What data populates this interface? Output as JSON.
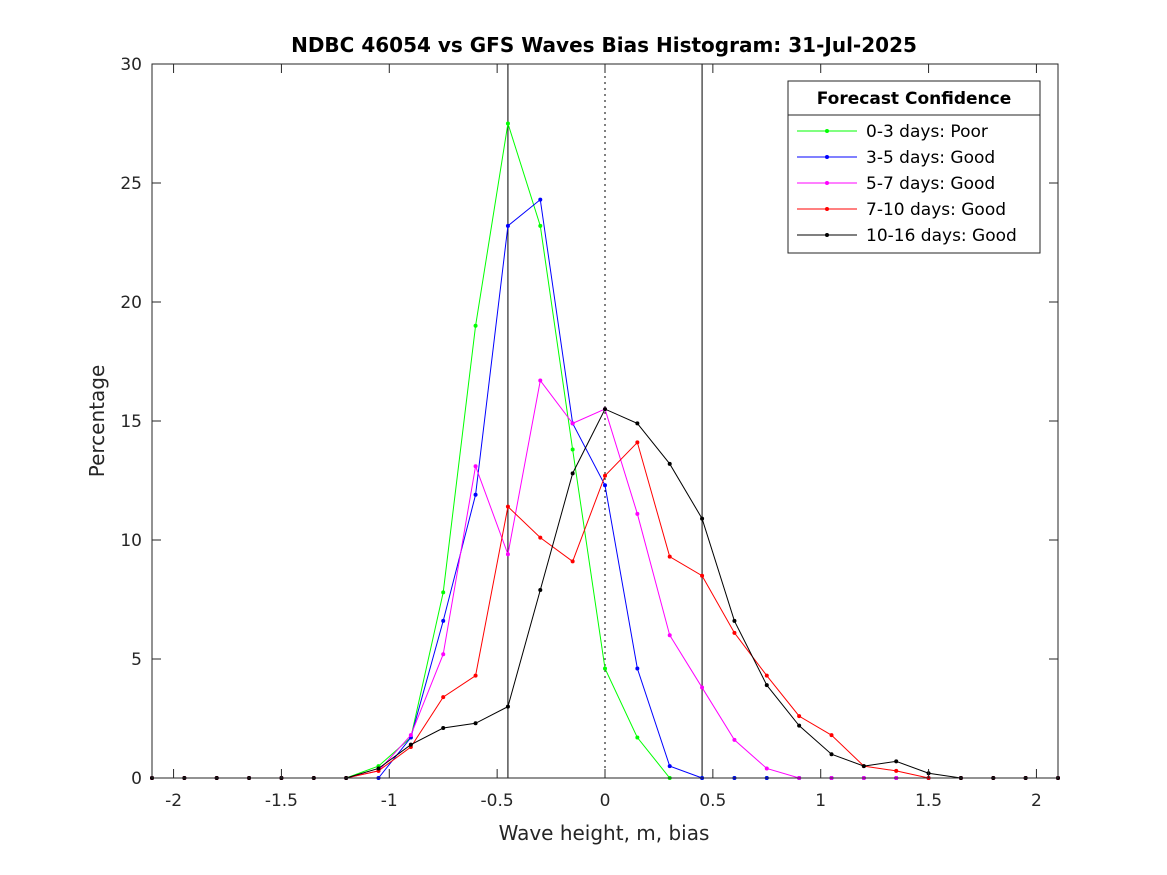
{
  "chart_data": {
    "type": "line",
    "title": "NDBC 46054 vs GFS Waves Bias Histogram: 31-Jul-2025",
    "xlabel": "Wave height, m, bias",
    "ylabel": "Percentage",
    "xlim": [
      -2.1,
      2.1
    ],
    "ylim": [
      0,
      30
    ],
    "xticks": [
      -2,
      -1.5,
      -1,
      -0.5,
      0,
      0.5,
      1,
      1.5,
      2
    ],
    "xtick_labels": [
      "-2",
      "-1.5",
      "-1",
      "-0.5",
      "0",
      "0.5",
      "1",
      "1.5",
      "2"
    ],
    "yticks": [
      0,
      5,
      10,
      15,
      20,
      25,
      30
    ],
    "ytick_labels": [
      "0",
      "5",
      "10",
      "15",
      "20",
      "25",
      "30"
    ],
    "grid": false,
    "legend_title": "Forecast Confidence",
    "legend_position": "top-right",
    "reference_lines": [
      {
        "x": -0.45,
        "style": "solid"
      },
      {
        "x": 0,
        "style": "dotted"
      },
      {
        "x": 0.45,
        "style": "solid"
      }
    ],
    "x": [
      -2.1,
      -1.95,
      -1.8,
      -1.65,
      -1.5,
      -1.35,
      -1.2,
      -1.05,
      -0.9,
      -0.75,
      -0.6,
      -0.45,
      -0.3,
      -0.15,
      0,
      0.15,
      0.3,
      0.45,
      0.6,
      0.75,
      0.9,
      1.05,
      1.2,
      1.35,
      1.5,
      1.65,
      1.8,
      1.95,
      2.1
    ],
    "series": [
      {
        "name": "0-3 days: Poor",
        "color": "#00ff00",
        "values": [
          0,
          0,
          0,
          0,
          0,
          0,
          0,
          0.5,
          1.7,
          7.8,
          19.0,
          27.5,
          23.2,
          13.8,
          4.6,
          1.7,
          0,
          0,
          0,
          0,
          0,
          0,
          0,
          0,
          0,
          0,
          0,
          0,
          0
        ]
      },
      {
        "name": "3-5 days: Good",
        "color": "#0000ff",
        "values": [
          0,
          0,
          0,
          0,
          0,
          0,
          0,
          0,
          1.7,
          6.6,
          11.9,
          23.2,
          24.3,
          14.9,
          12.3,
          4.6,
          0.5,
          0,
          0,
          0,
          0,
          0,
          0,
          0,
          0,
          0,
          0,
          0,
          0
        ]
      },
      {
        "name": "5-7 days: Good",
        "color": "#ff00ff",
        "values": [
          0,
          0,
          0,
          0,
          0,
          0,
          0,
          0.3,
          1.8,
          5.2,
          13.1,
          9.4,
          16.7,
          14.9,
          15.5,
          11.1,
          6.0,
          3.8,
          1.6,
          0.4,
          0,
          0,
          0,
          0,
          0,
          0,
          0,
          0,
          0
        ]
      },
      {
        "name": "7-10 days: Good",
        "color": "#ff0000",
        "values": [
          0,
          0,
          0,
          0,
          0,
          0,
          0,
          0.3,
          1.3,
          3.4,
          4.3,
          11.4,
          10.1,
          9.1,
          12.7,
          14.1,
          9.3,
          8.5,
          6.1,
          4.3,
          2.6,
          1.8,
          0.5,
          0.3,
          0,
          0,
          0,
          0,
          0
        ]
      },
      {
        "name": "10-16 days: Good",
        "color": "#000000",
        "values": [
          0,
          0,
          0,
          0,
          0,
          0,
          0,
          0.4,
          1.4,
          2.1,
          2.3,
          3.0,
          7.9,
          12.8,
          15.5,
          14.9,
          13.2,
          10.9,
          6.6,
          3.9,
          2.2,
          1.0,
          0.5,
          0.7,
          0.2,
          0,
          0,
          0,
          0
        ]
      }
    ]
  }
}
